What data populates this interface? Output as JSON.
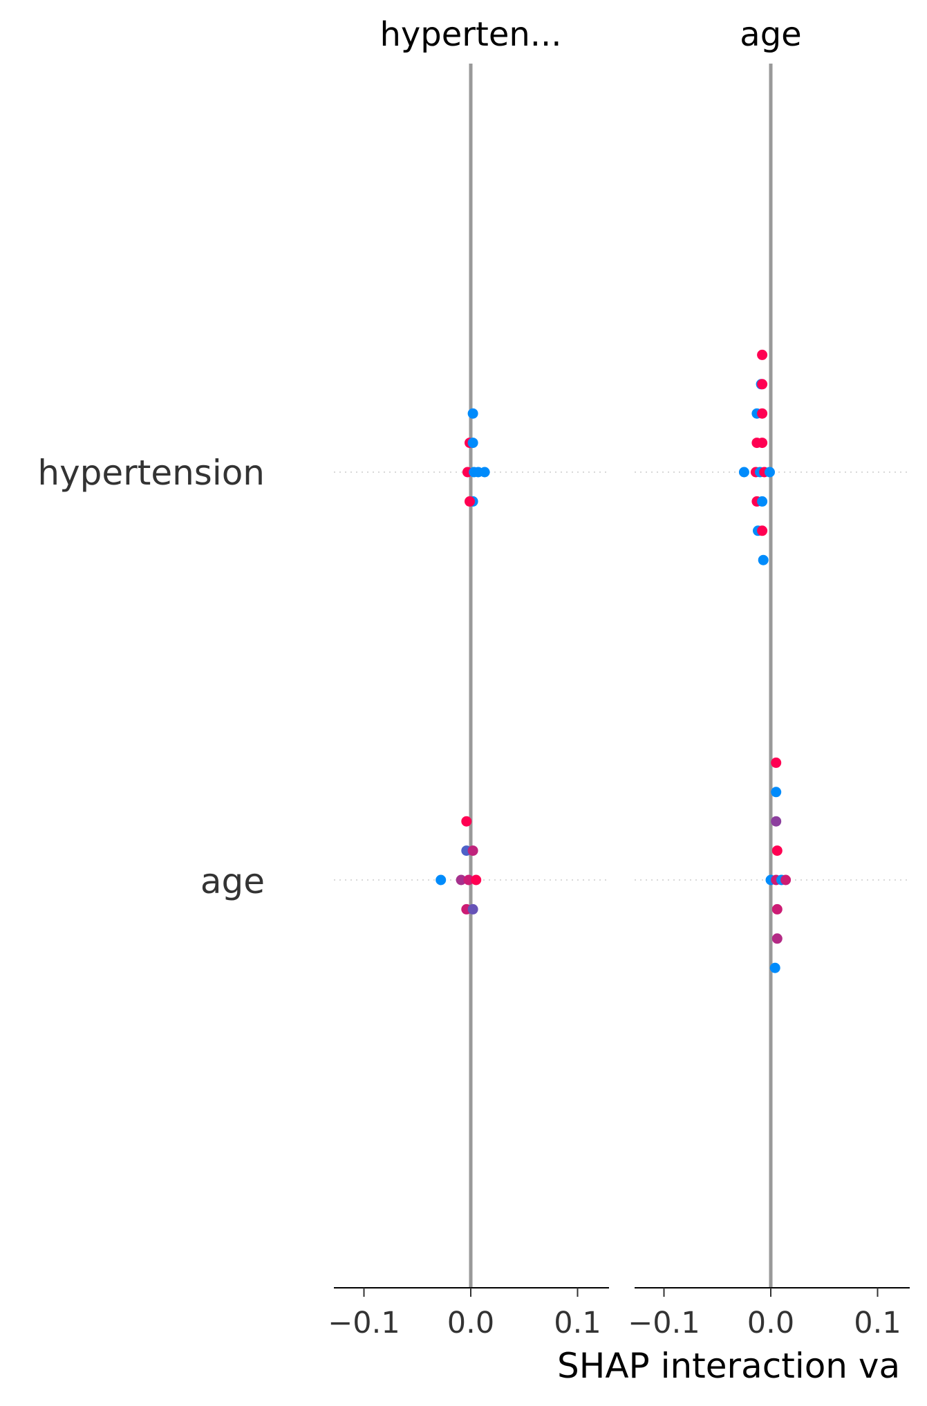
{
  "chart_data": {
    "type": "scatter",
    "subtype": "shap-interaction-summary",
    "xlabel": "SHAP interaction va",
    "row_labels": [
      "hypertension",
      "age"
    ],
    "panel_titles": [
      "hyperten...",
      "age"
    ],
    "xlim": [
      -0.13,
      0.13
    ],
    "xticks": [
      -0.1,
      0.0,
      0.1
    ],
    "xtick_labels": [
      "−0.1",
      "0.0",
      "0.1"
    ],
    "grid": "horizontal dotted per row",
    "colors": {
      "low": "#008bfb",
      "high": "#ff0052",
      "zero_line": "#999999",
      "axis": "#000000",
      "grid": "#cccccc"
    },
    "panels": [
      {
        "title": "hyperten...",
        "rows": [
          {
            "feature": "hypertension",
            "points": [
              {
                "x": 0.002,
                "level": 4,
                "color": 0.0
              },
              {
                "x": -0.001,
                "level": 2,
                "color": 1.0
              },
              {
                "x": 0.002,
                "level": 2,
                "color": 0.0
              },
              {
                "x": -0.003,
                "level": 0,
                "color": 1.0
              },
              {
                "x": 0.003,
                "level": 0,
                "color": 0.0
              },
              {
                "x": 0.007,
                "level": 0,
                "color": 0.0
              },
              {
                "x": 0.013,
                "level": 0,
                "color": 0.0
              },
              {
                "x": 0.002,
                "level": -2,
                "color": 0.0
              },
              {
                "x": -0.001,
                "level": -2,
                "color": 1.0
              }
            ]
          },
          {
            "feature": "age",
            "points": [
              {
                "x": -0.004,
                "level": 4,
                "color": 1.0
              },
              {
                "x": -0.004,
                "level": 2,
                "color": 0.3
              },
              {
                "x": 0.002,
                "level": 2,
                "color": 0.75
              },
              {
                "x": -0.028,
                "level": 0,
                "color": 0.0
              },
              {
                "x": -0.009,
                "level": 0,
                "color": 0.65
              },
              {
                "x": -0.002,
                "level": 0,
                "color": 0.8
              },
              {
                "x": 0.005,
                "level": 0,
                "color": 1.0
              },
              {
                "x": -0.004,
                "level": -2,
                "color": 0.8
              },
              {
                "x": 0.002,
                "level": -2,
                "color": 0.4
              }
            ]
          }
        ]
      },
      {
        "title": "age",
        "rows": [
          {
            "feature": "hypertension",
            "points": [
              {
                "x": -0.008,
                "level": 8,
                "color": 1.0
              },
              {
                "x": -0.009,
                "level": 6,
                "color": 0.0
              },
              {
                "x": -0.008,
                "level": 6,
                "color": 1.0
              },
              {
                "x": -0.013,
                "level": 4,
                "color": 0.0
              },
              {
                "x": -0.008,
                "level": 4,
                "color": 1.0
              },
              {
                "x": -0.013,
                "level": 2,
                "color": 1.0
              },
              {
                "x": -0.008,
                "level": 2,
                "color": 1.0
              },
              {
                "x": -0.025,
                "level": 0,
                "color": 0.0
              },
              {
                "x": -0.014,
                "level": 0,
                "color": 1.0
              },
              {
                "x": -0.01,
                "level": 0,
                "color": 0.0
              },
              {
                "x": -0.006,
                "level": 0,
                "color": 1.0
              },
              {
                "x": -0.001,
                "level": 0,
                "color": 0.0
              },
              {
                "x": -0.013,
                "level": -2,
                "color": 1.0
              },
              {
                "x": -0.008,
                "level": -2,
                "color": 0.0
              },
              {
                "x": -0.012,
                "level": -4,
                "color": 0.0
              },
              {
                "x": -0.008,
                "level": -4,
                "color": 1.0
              },
              {
                "x": -0.007,
                "level": -6,
                "color": 0.0
              }
            ]
          },
          {
            "feature": "age",
            "points": [
              {
                "x": 0.005,
                "level": 8,
                "color": 1.0
              },
              {
                "x": 0.005,
                "level": 6,
                "color": 0.0
              },
              {
                "x": 0.005,
                "level": 4,
                "color": 0.55
              },
              {
                "x": 0.006,
                "level": 2,
                "color": 1.0
              },
              {
                "x": 0.0,
                "level": 0,
                "color": 0.0
              },
              {
                "x": 0.005,
                "level": 0,
                "color": 0.8
              },
              {
                "x": 0.01,
                "level": 0,
                "color": 0.0
              },
              {
                "x": 0.014,
                "level": 0,
                "color": 0.8
              },
              {
                "x": 0.006,
                "level": -2,
                "color": 0.8
              },
              {
                "x": 0.006,
                "level": -4,
                "color": 0.7
              },
              {
                "x": 0.004,
                "level": -6,
                "color": 0.0
              }
            ]
          }
        ]
      }
    ]
  }
}
